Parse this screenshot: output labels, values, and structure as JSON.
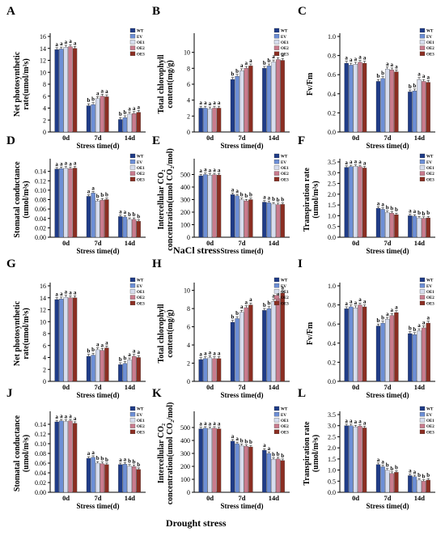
{
  "figure": {
    "section_titles": [
      "NaCl stress",
      "Drought stress"
    ],
    "legend_labels": [
      "WT",
      "EV",
      "OE1",
      "OE2",
      "OE3"
    ],
    "series_colors": [
      "#1f3c88",
      "#6d8fd6",
      "#d7ddee",
      "#c97b8d",
      "#8b2e22"
    ],
    "axis_color": "#000000",
    "error_bar_color": "#222222"
  },
  "chart_data": [
    {
      "type": "bar",
      "panel": "A",
      "categories": [
        "0d",
        "7d",
        "14d"
      ],
      "xlabel": "Stress time(d)",
      "ylabel": "Net photosynthetic rate(umol/m²s)",
      "ylim": [
        0,
        16
      ],
      "yticks": [
        0,
        2,
        4,
        6,
        8,
        10,
        12,
        14,
        16
      ],
      "ytick_labels": [
        "0",
        "2",
        "4",
        "6",
        "8",
        "10",
        "12",
        "14",
        "16"
      ],
      "series": [
        {
          "name": "WT",
          "values": [
            13.8,
            4.4,
            2.1
          ]
        },
        {
          "name": "EV",
          "values": [
            13.9,
            4.6,
            2.4
          ]
        },
        {
          "name": "OE1",
          "values": [
            14.2,
            5.6,
            3.0
          ]
        },
        {
          "name": "OE2",
          "values": [
            14.3,
            6.0,
            3.1
          ]
        },
        {
          "name": "OE3",
          "values": [
            14.0,
            5.9,
            3.3
          ]
        }
      ],
      "sig_letters": [
        [
          "a",
          "a",
          "a",
          "a",
          "a"
        ],
        [
          "b",
          "b",
          "a",
          "a",
          "a"
        ],
        [
          "b",
          "b",
          "a",
          "a",
          "a"
        ]
      ]
    },
    {
      "type": "bar",
      "panel": "B",
      "categories": [
        "0d",
        "7d",
        "14d"
      ],
      "xlabel": "Stress time(d)",
      "ylabel": "Total chlorophyll content(mg/g)",
      "ylim": [
        0,
        12
      ],
      "yticks": [
        0,
        2,
        4,
        6,
        8,
        10
      ],
      "ytick_labels": [
        "0",
        "2",
        "4",
        "6",
        "8",
        "10"
      ],
      "series": [
        {
          "name": "WT",
          "values": [
            3.0,
            6.6,
            8.0
          ]
        },
        {
          "name": "EV",
          "values": [
            3.0,
            7.0,
            8.3
          ]
        },
        {
          "name": "OE1",
          "values": [
            2.9,
            7.7,
            8.8
          ]
        },
        {
          "name": "OE2",
          "values": [
            3.0,
            8.0,
            9.1
          ]
        },
        {
          "name": "OE3",
          "values": [
            3.0,
            8.3,
            9.0
          ]
        }
      ],
      "sig_letters": [
        [
          "a",
          "a",
          "a",
          "a",
          "a"
        ],
        [
          "b",
          "b",
          "a",
          "a",
          "a"
        ],
        [
          "b",
          "b",
          "a",
          "a",
          "a"
        ]
      ]
    },
    {
      "type": "bar",
      "panel": "C",
      "categories": [
        "0d",
        "7d",
        "14d"
      ],
      "xlabel": "Stress time(d)",
      "ylabel": "Fv/Fm",
      "ylim": [
        0,
        1.0
      ],
      "yticks": [
        0,
        0.2,
        0.4,
        0.6,
        0.8,
        1.0
      ],
      "ytick_labels": [
        "0.0",
        "0.2",
        "0.4",
        "0.6",
        "0.8",
        "1.0"
      ],
      "series": [
        {
          "name": "WT",
          "values": [
            0.72,
            0.53,
            0.42
          ]
        },
        {
          "name": "EV",
          "values": [
            0.7,
            0.56,
            0.43
          ]
        },
        {
          "name": "OE1",
          "values": [
            0.71,
            0.66,
            0.55
          ]
        },
        {
          "name": "OE2",
          "values": [
            0.73,
            0.65,
            0.53
          ]
        },
        {
          "name": "OE3",
          "values": [
            0.72,
            0.63,
            0.52
          ]
        }
      ],
      "sig_letters": [
        [
          "a",
          "a",
          "a",
          "a",
          "a"
        ],
        [
          "b",
          "b",
          "a",
          "a",
          "a"
        ],
        [
          "b",
          "b",
          "a",
          "a",
          "a"
        ]
      ]
    },
    {
      "type": "bar",
      "panel": "D",
      "categories": [
        "0d",
        "7d",
        "14d"
      ],
      "xlabel": "Stress time(d)",
      "ylabel": "Stomatal conductance (umol/m²s)",
      "ylim": [
        0,
        0.16
      ],
      "yticks": [
        0,
        0.02,
        0.04,
        0.06,
        0.08,
        0.1,
        0.12,
        0.14
      ],
      "ytick_labels": [
        "0.00",
        "0.02",
        "0.04",
        "0.06",
        "0.08",
        "0.10",
        "0.12",
        "0.14"
      ],
      "series": [
        {
          "name": "WT",
          "values": [
            0.145,
            0.087,
            0.044
          ]
        },
        {
          "name": "EV",
          "values": [
            0.146,
            0.094,
            0.043
          ]
        },
        {
          "name": "OE1",
          "values": [
            0.147,
            0.077,
            0.038
          ]
        },
        {
          "name": "OE2",
          "values": [
            0.146,
            0.079,
            0.038
          ]
        },
        {
          "name": "OE3",
          "values": [
            0.147,
            0.08,
            0.034
          ]
        }
      ],
      "sig_letters": [
        [
          "a",
          "a",
          "a",
          "a",
          "a"
        ],
        [
          "a",
          "a",
          "b",
          "b",
          "b"
        ],
        [
          "a",
          "a",
          "b",
          "b",
          "b"
        ]
      ]
    },
    {
      "type": "bar",
      "panel": "E",
      "categories": [
        "0d",
        "7d",
        "14d"
      ],
      "xlabel": "Stress time(d)",
      "ylabel": "Intercellular CO₂ concentration(umol CO₂/mol)",
      "ylim": [
        0,
        600
      ],
      "yticks": [
        0,
        100,
        200,
        300,
        400,
        500
      ],
      "ytick_labels": [
        "0",
        "100",
        "200",
        "300",
        "400",
        "500"
      ],
      "series": [
        {
          "name": "WT",
          "values": [
            490,
            340,
            280
          ]
        },
        {
          "name": "EV",
          "values": [
            500,
            330,
            275
          ]
        },
        {
          "name": "OE1",
          "values": [
            495,
            300,
            265
          ]
        },
        {
          "name": "OE2",
          "values": [
            498,
            290,
            260
          ]
        },
        {
          "name": "OE3",
          "values": [
            496,
            300,
            262
          ]
        }
      ],
      "sig_letters": [
        [
          "a",
          "a",
          "a",
          "a",
          "a"
        ],
        [
          "a",
          "a",
          "b",
          "b",
          "b"
        ],
        [
          "a",
          "a",
          "b",
          "b",
          "b"
        ]
      ]
    },
    {
      "type": "bar",
      "panel": "F",
      "categories": [
        "0d",
        "7d",
        "14d"
      ],
      "xlabel": "Stress time(d)",
      "ylabel": "Transpiration rate (umol/m²s)",
      "ylim": [
        0,
        3.5
      ],
      "yticks": [
        0,
        0.5,
        1.0,
        1.5,
        2.0,
        2.5,
        3.0,
        3.5
      ],
      "ytick_labels": [
        "0.0",
        "0.5",
        "1.0",
        "1.5",
        "2.0",
        "2.5",
        "3.0",
        "3.5"
      ],
      "series": [
        {
          "name": "WT",
          "values": [
            3.25,
            1.35,
            1.0
          ]
        },
        {
          "name": "EV",
          "values": [
            3.28,
            1.3,
            0.98
          ]
        },
        {
          "name": "OE1",
          "values": [
            3.3,
            1.15,
            0.9
          ]
        },
        {
          "name": "OE2",
          "values": [
            3.28,
            1.12,
            0.88
          ]
        },
        {
          "name": "OE3",
          "values": [
            3.22,
            1.05,
            0.9
          ]
        }
      ],
      "sig_letters": [
        [
          "a",
          "a",
          "a",
          "a",
          "a"
        ],
        [
          "a",
          "a",
          "b",
          "b",
          "b"
        ],
        [
          "a",
          "a",
          "b",
          "b",
          "b"
        ]
      ]
    },
    {
      "type": "bar",
      "panel": "G",
      "categories": [
        "0d",
        "7d",
        "14d"
      ],
      "xlabel": "Stress time(d)",
      "ylabel": "Net photosynthetic rate(umol/m²s)",
      "ylim": [
        0,
        16
      ],
      "yticks": [
        0,
        2,
        4,
        6,
        8,
        10,
        12,
        14,
        16
      ],
      "ytick_labels": [
        "0",
        "2",
        "4",
        "6",
        "8",
        "10",
        "12",
        "14",
        "16"
      ],
      "series": [
        {
          "name": "WT",
          "values": [
            13.7,
            4.2,
            2.8
          ]
        },
        {
          "name": "EV",
          "values": [
            13.8,
            4.4,
            3.0
          ]
        },
        {
          "name": "OE1",
          "values": [
            14.1,
            5.3,
            3.6
          ]
        },
        {
          "name": "OE2",
          "values": [
            14.0,
            5.2,
            4.2
          ]
        },
        {
          "name": "OE3",
          "values": [
            14.0,
            5.6,
            4.0
          ]
        }
      ],
      "sig_letters": [
        [
          "a",
          "a",
          "a",
          "a",
          "a"
        ],
        [
          "b",
          "b",
          "a",
          "a",
          "a"
        ],
        [
          "b",
          "b",
          "a",
          "a",
          "a"
        ]
      ]
    },
    {
      "type": "bar",
      "panel": "H",
      "categories": [
        "0d",
        "7d",
        "14d"
      ],
      "xlabel": "Stress time(d)",
      "ylabel": "Total chlorophyll content(mg/g)",
      "ylim": [
        0,
        10.5
      ],
      "yticks": [
        0,
        2,
        4,
        6,
        8,
        10
      ],
      "ytick_labels": [
        "0",
        "2",
        "4",
        "6",
        "8",
        "10"
      ],
      "series": [
        {
          "name": "WT",
          "values": [
            2.4,
            6.5,
            7.8
          ]
        },
        {
          "name": "EV",
          "values": [
            2.5,
            6.9,
            8.0
          ]
        },
        {
          "name": "OE1",
          "values": [
            2.6,
            7.6,
            8.8
          ]
        },
        {
          "name": "OE2",
          "values": [
            2.5,
            8.1,
            9.1
          ]
        },
        {
          "name": "OE3",
          "values": [
            2.5,
            8.4,
            9.7
          ]
        }
      ],
      "sig_letters": [
        [
          "a",
          "a",
          "a",
          "a",
          "a"
        ],
        [
          "b",
          "b",
          "a",
          "a",
          "a"
        ],
        [
          "b",
          "b",
          "a",
          "a",
          "a"
        ]
      ]
    },
    {
      "type": "bar",
      "panel": "I",
      "categories": [
        "0d",
        "7d",
        "14d"
      ],
      "xlabel": "Stress time(d)",
      "ylabel": "Fv/Fm",
      "ylim": [
        0,
        1.0
      ],
      "yticks": [
        0,
        0.2,
        0.4,
        0.6,
        0.8,
        1.0
      ],
      "ytick_labels": [
        "0.0",
        "0.2",
        "0.4",
        "0.6",
        "0.8",
        "1.0"
      ],
      "series": [
        {
          "name": "WT",
          "values": [
            0.76,
            0.58,
            0.5
          ]
        },
        {
          "name": "EV",
          "values": [
            0.78,
            0.61,
            0.49
          ]
        },
        {
          "name": "OE1",
          "values": [
            0.77,
            0.65,
            0.53
          ]
        },
        {
          "name": "OE2",
          "values": [
            0.8,
            0.69,
            0.56
          ]
        },
        {
          "name": "OE3",
          "values": [
            0.78,
            0.72,
            0.61
          ]
        }
      ],
      "sig_letters": [
        [
          "a",
          "a",
          "a",
          "a",
          "a"
        ],
        [
          "b",
          "b",
          "a",
          "a",
          "a"
        ],
        [
          "b",
          "b",
          "a",
          "a",
          "a"
        ]
      ]
    },
    {
      "type": "bar",
      "panel": "J",
      "categories": [
        "0d",
        "7d",
        "14d"
      ],
      "xlabel": "Stress time(d)",
      "ylabel": "Stomatal conductance (umol/m²s)",
      "ylim": [
        0,
        0.16
      ],
      "yticks": [
        0,
        0.02,
        0.04,
        0.06,
        0.08,
        0.1,
        0.12,
        0.14
      ],
      "ytick_labels": [
        "0.00",
        "0.02",
        "0.04",
        "0.06",
        "0.08",
        "0.10",
        "0.12",
        "0.14"
      ],
      "series": [
        {
          "name": "WT",
          "values": [
            0.145,
            0.07,
            0.057
          ]
        },
        {
          "name": "EV",
          "values": [
            0.147,
            0.072,
            0.058
          ]
        },
        {
          "name": "OE1",
          "values": [
            0.146,
            0.06,
            0.054
          ]
        },
        {
          "name": "OE2",
          "values": [
            0.147,
            0.059,
            0.053
          ]
        },
        {
          "name": "OE3",
          "values": [
            0.142,
            0.057,
            0.047
          ]
        }
      ],
      "sig_letters": [
        [
          "a",
          "a",
          "a",
          "a",
          "a"
        ],
        [
          "a",
          "a",
          "b",
          "b",
          "b"
        ],
        [
          "a",
          "a",
          "b",
          "b",
          "b"
        ]
      ]
    },
    {
      "type": "bar",
      "panel": "K",
      "categories": [
        "0d",
        "7d",
        "14d"
      ],
      "xlabel": "Stress time(d)",
      "ylabel": "Intercellular CO₂ concentration(umol CO₂/mol)",
      "ylim": [
        0,
        600
      ],
      "yticks": [
        0,
        100,
        200,
        300,
        400,
        500
      ],
      "ytick_labels": [
        "0",
        "100",
        "200",
        "300",
        "400",
        "500"
      ],
      "series": [
        {
          "name": "WT",
          "values": [
            490,
            395,
            325
          ]
        },
        {
          "name": "EV",
          "values": [
            495,
            375,
            300
          ]
        },
        {
          "name": "OE1",
          "values": [
            492,
            360,
            255
          ]
        },
        {
          "name": "OE2",
          "values": [
            495,
            355,
            258
          ]
        },
        {
          "name": "OE3",
          "values": [
            490,
            350,
            245
          ]
        }
      ],
      "sig_letters": [
        [
          "a",
          "a",
          "a",
          "a",
          "a"
        ],
        [
          "a",
          "a",
          "b",
          "b",
          "b"
        ],
        [
          "a",
          "a",
          "b",
          "b",
          "b"
        ]
      ]
    },
    {
      "type": "bar",
      "panel": "L",
      "categories": [
        "0d",
        "7d",
        "14d"
      ],
      "xlabel": "Stress time(d)",
      "ylabel": "Transpiration rate (umol/m²s)",
      "ylim": [
        0,
        3.5
      ],
      "yticks": [
        0,
        0.5,
        1.0,
        1.5,
        2.0,
        2.5,
        3.0,
        3.5
      ],
      "ytick_labels": [
        "0.0",
        "0.5",
        "1.0",
        "1.5",
        "2.0",
        "2.5",
        "3.0",
        "3.5"
      ],
      "series": [
        {
          "name": "WT",
          "values": [
            3.0,
            1.25,
            0.75
          ]
        },
        {
          "name": "EV",
          "values": [
            3.0,
            1.15,
            0.7
          ]
        },
        {
          "name": "OE1",
          "values": [
            2.95,
            1.0,
            0.55
          ]
        },
        {
          "name": "OE2",
          "values": [
            2.98,
            0.85,
            0.5
          ]
        },
        {
          "name": "OE3",
          "values": [
            2.9,
            0.9,
            0.55
          ]
        }
      ],
      "sig_letters": [
        [
          "a",
          "a",
          "a",
          "a",
          "a"
        ],
        [
          "a",
          "a",
          "b",
          "b",
          "b"
        ],
        [
          "a",
          "a",
          "b",
          "b",
          "b"
        ]
      ]
    }
  ]
}
